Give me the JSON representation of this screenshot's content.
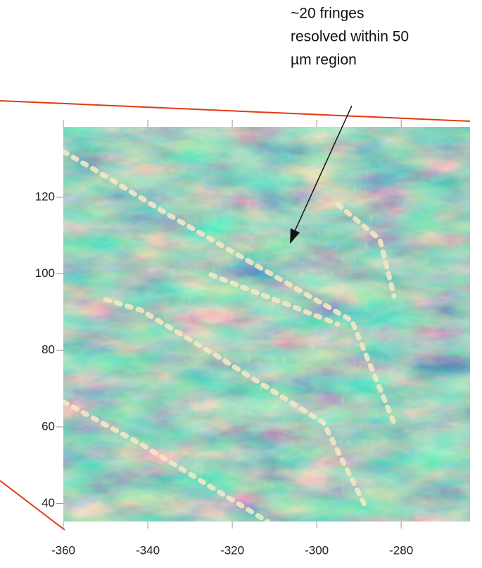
{
  "chart_data": {
    "type": "image",
    "annotation": [
      "~20 fringes",
      "resolved within 50",
      "µm region"
    ],
    "xlim": [
      -360,
      -263.7
    ],
    "xticks": [
      -360,
      -340,
      -320,
      -300,
      -280
    ],
    "ylim": [
      35.3,
      138.4
    ],
    "yticks": [
      40,
      60,
      80,
      100,
      120
    ]
  }
}
